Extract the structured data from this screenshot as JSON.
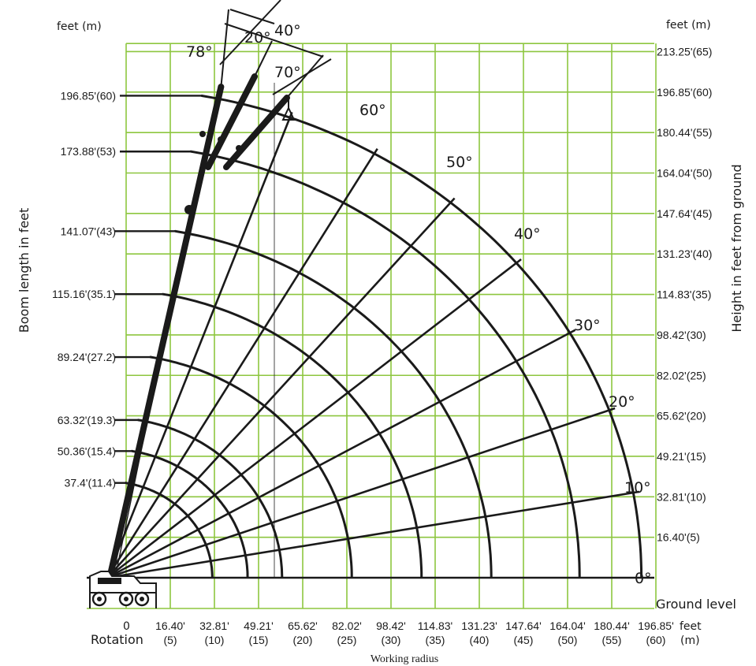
{
  "chart_data": {
    "type": "line",
    "subtype": "crane working range chart",
    "xlabel": "Working radius",
    "ylabel_left": "Boom length in feet",
    "ylabel_right": "Height in feet from ground",
    "unit_header_left": "feet  (m)",
    "unit_header_right": "feet  (m)",
    "x_unit_label": "feet",
    "x_unit_label_m": "(m)",
    "rotation_label": "Rotation",
    "zero_label": "0",
    "ground_label": "Ground level",
    "xlim_m": [
      0,
      65
    ],
    "ylim_m": [
      0,
      65
    ],
    "grid": true,
    "x_ticks": [
      {
        "m": 5,
        "feet": "16.40'",
        "m_label": "(5)"
      },
      {
        "m": 10,
        "feet": "32.81'",
        "m_label": "(10)"
      },
      {
        "m": 15,
        "feet": "49.21'",
        "m_label": "(15)"
      },
      {
        "m": 20,
        "feet": "65.62'",
        "m_label": "(20)"
      },
      {
        "m": 25,
        "feet": "82.02'",
        "m_label": "(25)"
      },
      {
        "m": 30,
        "feet": "98.42'",
        "m_label": "(30)"
      },
      {
        "m": 35,
        "feet": "114.83'",
        "m_label": "(35)"
      },
      {
        "m": 40,
        "feet": "131.23'",
        "m_label": "(40)"
      },
      {
        "m": 45,
        "feet": "147.64'",
        "m_label": "(45)"
      },
      {
        "m": 50,
        "feet": "164.04'",
        "m_label": "(50)"
      },
      {
        "m": 55,
        "feet": "180.44'",
        "m_label": "(55)"
      },
      {
        "m": 60,
        "feet": "196.85'",
        "m_label": "(60)"
      }
    ],
    "height_ticks": [
      {
        "m": 5,
        "label": "16.40'(5)"
      },
      {
        "m": 10,
        "label": "32.81'(10)"
      },
      {
        "m": 15,
        "label": "49.21'(15)"
      },
      {
        "m": 20,
        "label": "65.62'(20)"
      },
      {
        "m": 25,
        "label": "82.02'(25)"
      },
      {
        "m": 30,
        "label": "98.42'(30)"
      },
      {
        "m": 35,
        "label": "114.83'(35)"
      },
      {
        "m": 40,
        "label": "131.23'(40)"
      },
      {
        "m": 45,
        "label": "147.64'(45)"
      },
      {
        "m": 50,
        "label": "164.04'(50)"
      },
      {
        "m": 55,
        "label": "180.44'(55)"
      },
      {
        "m": 60,
        "label": "196.85'(60)"
      },
      {
        "m": 65,
        "label": "213.25'(65)"
      }
    ],
    "boom_lengths": [
      {
        "m": 11.4,
        "label": "37.4'(11.4)"
      },
      {
        "m": 15.4,
        "label": "50.36'(15.4)"
      },
      {
        "m": 19.3,
        "label": "63.32'(19.3)"
      },
      {
        "m": 27.2,
        "label": "89.24'(27.2)"
      },
      {
        "m": 35.1,
        "label": "115.16'(35.1)"
      },
      {
        "m": 43,
        "label": "141.07'(43)"
      },
      {
        "m": 53,
        "label": "173.88'(53)"
      },
      {
        "m": 60,
        "label": "196.85'(60)"
      }
    ],
    "boom_angles": [
      {
        "deg": 0,
        "label": "0°"
      },
      {
        "deg": 10,
        "label": "10°"
      },
      {
        "deg": 20,
        "label": "20°"
      },
      {
        "deg": 30,
        "label": "30°"
      },
      {
        "deg": 40,
        "label": "40°"
      },
      {
        "deg": 50,
        "label": "50°"
      },
      {
        "deg": 60,
        "label": "60°"
      },
      {
        "deg": 70,
        "label": "70°"
      },
      {
        "deg": 78,
        "label": "78°"
      }
    ],
    "jib_labels": {
      "offset_20": "20°",
      "offset_40": "40°"
    }
  }
}
